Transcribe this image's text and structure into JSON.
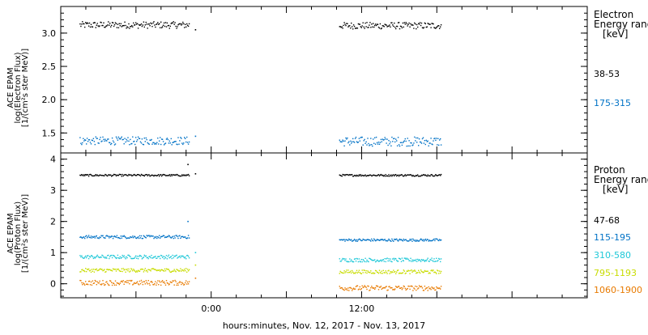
{
  "chart_data": [
    {
      "type": "scatter",
      "panel": "electron",
      "ylabel_lines": [
        "ACE EPAM",
        "log(Electron Flux)",
        "[1/(cm²s ster MeV)]"
      ],
      "ylim": [
        1.2,
        3.4
      ],
      "yticks": [
        1.5,
        2.0,
        2.5,
        3.0
      ],
      "ytick_labels": [
        "1.5",
        "2.0",
        "2.5",
        "3.0"
      ],
      "legend_title": [
        "Electron",
        "Energy ranges",
        "[keV]"
      ],
      "series": [
        {
          "name": "38-53",
          "color": "#000000",
          "level": 3.13,
          "segments": [
            {
              "x": [
                -10.5,
                -1.8
              ],
              "level": 3.13,
              "jitter": 0.05
            },
            {
              "x": [
                10.2,
                18.3
              ],
              "level": 3.12,
              "jitter": 0.05
            }
          ],
          "extra_points": [
            [
              -1.3,
              3.06
            ]
          ]
        },
        {
          "name": "175-315",
          "color": "#0072c6",
          "level": 1.38,
          "segments": [
            {
              "x": [
                -10.5,
                -1.8
              ],
              "level": 1.39,
              "jitter": 0.06
            },
            {
              "x": [
                10.2,
                18.3
              ],
              "level": 1.38,
              "jitter": 0.07
            }
          ],
          "extra_points": [
            [
              -1.3,
              1.46
            ]
          ]
        }
      ]
    },
    {
      "type": "scatter",
      "panel": "proton",
      "ylabel_lines": [
        "ACE EPAM",
        "log(Proton Flux)",
        "[1/(cm²s ster MeV)]"
      ],
      "ylim": [
        -0.45,
        4.2
      ],
      "yticks": [
        0,
        1,
        2,
        3,
        4
      ],
      "ytick_labels": [
        "0",
        "1",
        "2",
        "3",
        "4"
      ],
      "legend_title": [
        "Proton",
        "Energy ranges",
        "[keV]"
      ],
      "series": [
        {
          "name": "47-68",
          "color": "#000000",
          "segments": [
            {
              "x": [
                -10.5,
                -1.8
              ],
              "level": 3.5,
              "jitter": 0.03
            },
            {
              "x": [
                10.2,
                18.3
              ],
              "level": 3.5,
              "jitter": 0.03
            }
          ],
          "extra_points": [
            [
              -1.3,
              3.55
            ],
            [
              -1.9,
              3.85
            ]
          ]
        },
        {
          "name": "115-195",
          "color": "#0072c6",
          "segments": [
            {
              "x": [
                -10.5,
                -1.8
              ],
              "level": 1.52,
              "jitter": 0.05
            },
            {
              "x": [
                10.2,
                18.3
              ],
              "level": 1.42,
              "jitter": 0.04
            }
          ],
          "extra_points": [
            [
              -1.9,
              2.02
            ]
          ]
        },
        {
          "name": "310-580",
          "color": "#20c8d8",
          "segments": [
            {
              "x": [
                -10.5,
                -1.8
              ],
              "level": 0.88,
              "jitter": 0.06
            },
            {
              "x": [
                10.2,
                18.3
              ],
              "level": 0.78,
              "jitter": 0.06
            }
          ],
          "extra_points": [
            [
              -1.3,
              1.02
            ]
          ]
        },
        {
          "name": "795-1193",
          "color": "#c8dc00",
          "segments": [
            {
              "x": [
                -10.5,
                -1.8
              ],
              "level": 0.45,
              "jitter": 0.06
            },
            {
              "x": [
                10.2,
                18.3
              ],
              "level": 0.4,
              "jitter": 0.06
            }
          ],
          "extra_points": [
            [
              -1.3,
              0.62
            ]
          ]
        },
        {
          "name": "1060-1900",
          "color": "#e87a00",
          "segments": [
            {
              "x": [
                -10.5,
                -1.8
              ],
              "level": 0.05,
              "jitter": 0.08
            },
            {
              "x": [
                10.2,
                18.3
              ],
              "level": -0.12,
              "jitter": 0.08
            }
          ],
          "extra_points": [
            [
              -1.3,
              0.2
            ]
          ]
        }
      ]
    }
  ],
  "x_axis": {
    "xlim": [
      -12,
      30
    ],
    "ticks": [
      0,
      12
    ],
    "tick_labels": [
      "0:00",
      "12:00"
    ],
    "minor_step": 2,
    "xlabel": "hours:minutes, Nov. 12, 2017 - Nov. 13, 2017"
  }
}
